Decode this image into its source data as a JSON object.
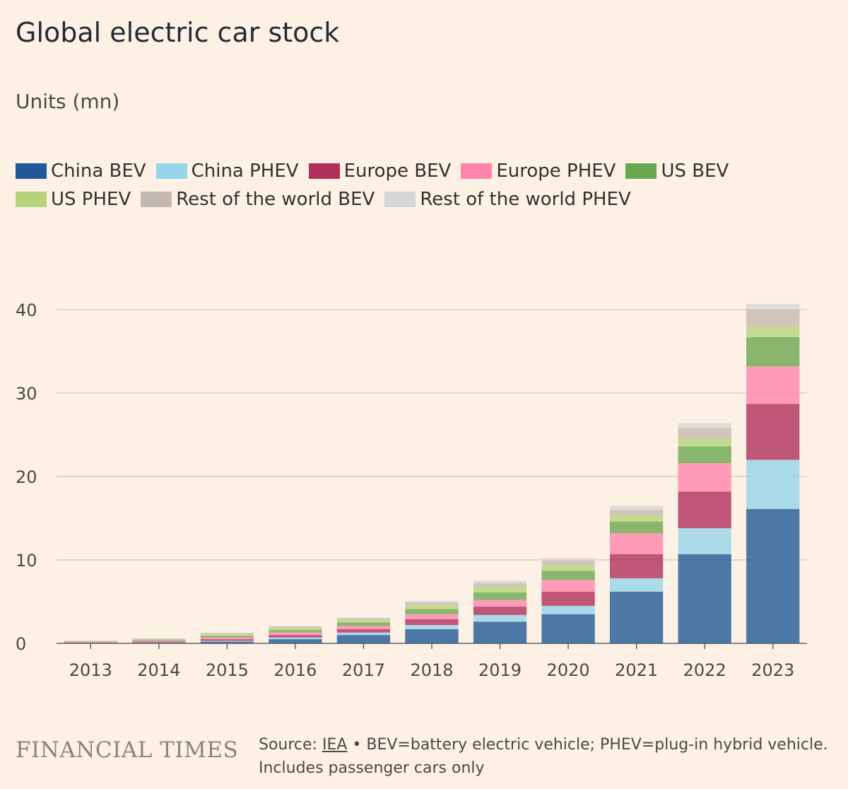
{
  "header": {
    "title": "Global electric car stock",
    "subtitle": "Units (mn)"
  },
  "footer": {
    "logo": "FINANCIAL TIMES",
    "source_prefix": "Source: ",
    "source_link": "IEA",
    "source_rest": " • BEV=battery electric vehicle; PHEV=plug-in hybrid vehicle.",
    "note": "Includes passenger cars only"
  },
  "chart_data": {
    "type": "bar",
    "stacked": true,
    "title": "Global electric car stock",
    "subtitle": "Units (mn)",
    "ylim": [
      0,
      40
    ],
    "yticks": [
      0,
      10,
      20,
      30,
      40
    ],
    "grid": true,
    "legend_position": "top",
    "categories": [
      "2013",
      "2014",
      "2015",
      "2016",
      "2017",
      "2018",
      "2019",
      "2020",
      "2021",
      "2022",
      "2023"
    ],
    "series": [
      {
        "name": "China BEV",
        "color": "#1f5a96",
        "values": [
          0.02,
          0.07,
          0.2,
          0.5,
          1.0,
          1.7,
          2.6,
          3.5,
          6.2,
          10.7,
          16.1
        ]
      },
      {
        "name": "China PHEV",
        "color": "#96d6e8",
        "values": [
          0.01,
          0.03,
          0.1,
          0.2,
          0.3,
          0.5,
          0.8,
          1.0,
          1.6,
          3.1,
          5.9
        ]
      },
      {
        "name": "Europe BEV",
        "color": "#b0305c",
        "values": [
          0.05,
          0.1,
          0.2,
          0.3,
          0.4,
          0.7,
          1.0,
          1.7,
          2.9,
          4.4,
          6.7
        ]
      },
      {
        "name": "Europe PHEV",
        "color": "#ff84ab",
        "values": [
          0.05,
          0.1,
          0.2,
          0.3,
          0.4,
          0.6,
          0.8,
          1.4,
          2.5,
          3.4,
          4.5
        ]
      },
      {
        "name": "US BEV",
        "color": "#6aa84f",
        "values": [
          0.07,
          0.1,
          0.2,
          0.3,
          0.4,
          0.6,
          0.9,
          1.1,
          1.4,
          2.0,
          3.5
        ]
      },
      {
        "name": "US PHEV",
        "color": "#b6d47c",
        "values": [
          0.07,
          0.1,
          0.2,
          0.3,
          0.3,
          0.5,
          0.7,
          0.7,
          0.8,
          1.0,
          1.3
        ]
      },
      {
        "name": "Rest of the world BEV",
        "color": "#c4b9b0",
        "values": [
          0.03,
          0.05,
          0.1,
          0.1,
          0.2,
          0.3,
          0.4,
          0.5,
          0.6,
          1.2,
          2.0
        ]
      },
      {
        "name": "Rest of the world PHEV",
        "color": "#d7d6d6",
        "values": [
          0.02,
          0.05,
          0.1,
          0.1,
          0.1,
          0.2,
          0.3,
          0.3,
          0.5,
          0.6,
          0.7
        ]
      }
    ]
  }
}
